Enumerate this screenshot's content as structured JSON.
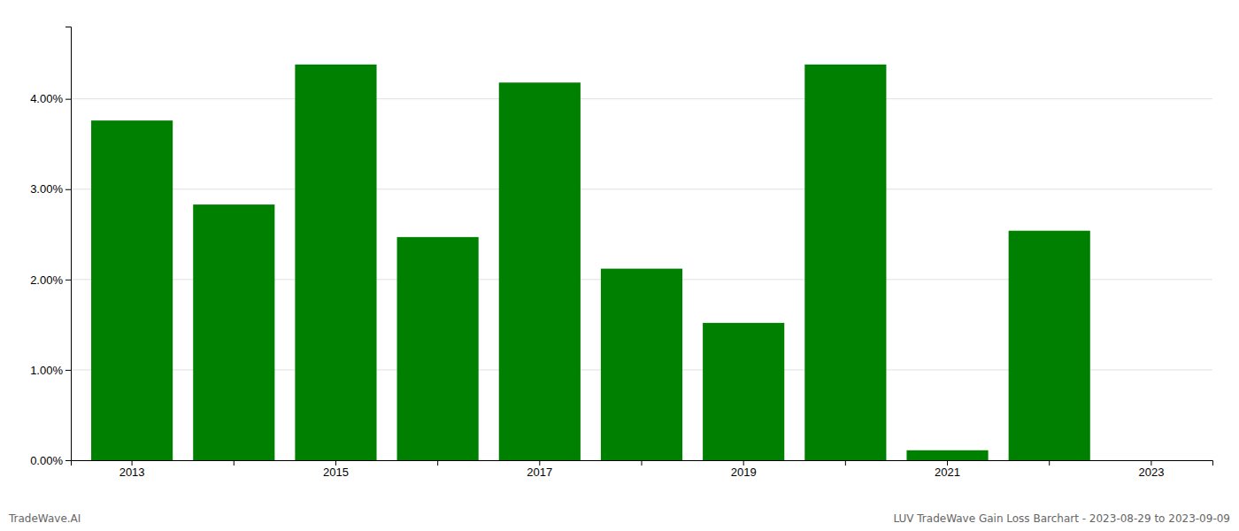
{
  "chart_data": {
    "type": "bar",
    "categories": [
      "2013",
      null,
      "2015",
      null,
      "2017",
      null,
      "2019",
      null,
      "2021",
      null,
      "2023"
    ],
    "values": [
      0.0376,
      0.0283,
      0.0438,
      0.0247,
      0.0418,
      0.0212,
      0.0152,
      0.0438,
      0.0011,
      0.0254,
      0.0
    ],
    "color": "#008000",
    "ylim": [
      0,
      0.048
    ],
    "yticks": [
      {
        "value": 0.0,
        "label": "0.00%"
      },
      {
        "value": 0.01,
        "label": "1.00%"
      },
      {
        "value": 0.02,
        "label": "2.00%"
      },
      {
        "value": 0.03,
        "label": "3.00%"
      },
      {
        "value": 0.04,
        "label": "4.00%"
      }
    ],
    "grid": true,
    "annotations": [
      "TradeWave.AI",
      "LUV TradeWave Gain Loss Barchart - 2023-08-29 to 2023-09-09"
    ]
  }
}
